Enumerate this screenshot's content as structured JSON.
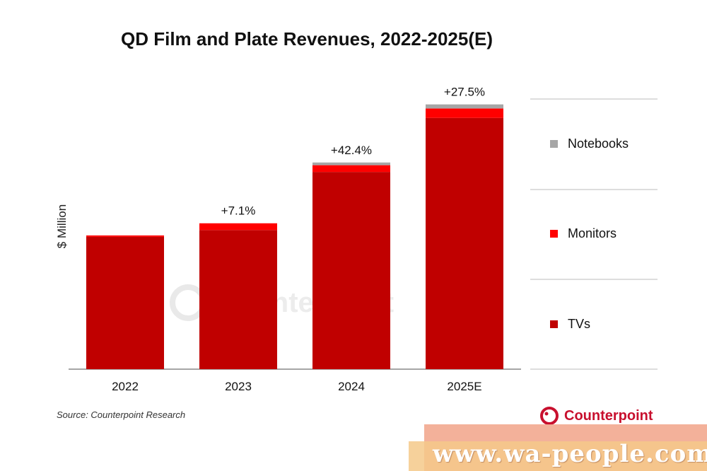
{
  "chart_data": {
    "type": "bar",
    "stacked": true,
    "title": "QD Film and Plate Revenues, 2022-2025(E)",
    "ylabel": "$ Million",
    "xlabel": "",
    "categories": [
      "2022",
      "2023",
      "2024",
      "2025E"
    ],
    "series": [
      {
        "name": "TVs",
        "color": "#c00000",
        "values": [
          98,
          103,
          146,
          186
        ]
      },
      {
        "name": "Monitors",
        "color": "#ff0000",
        "values": [
          1,
          5,
          5,
          7
        ]
      },
      {
        "name": "Notebooks",
        "color": "#a6a6a6",
        "values": [
          0,
          0,
          2,
          3
        ]
      }
    ],
    "growth_labels": [
      "",
      "+7.1%",
      "+42.4%",
      "+27.5%"
    ],
    "ylim": [
      0,
      200
    ],
    "grid": false,
    "legend_position": "right",
    "legend_order": [
      "Notebooks",
      "Monitors",
      "TVs"
    ]
  },
  "source": "Source: Counterpoint Research",
  "brand": "Counterpoint",
  "background_watermark": "Counterpoint",
  "watermark": "www.wa-people.com"
}
